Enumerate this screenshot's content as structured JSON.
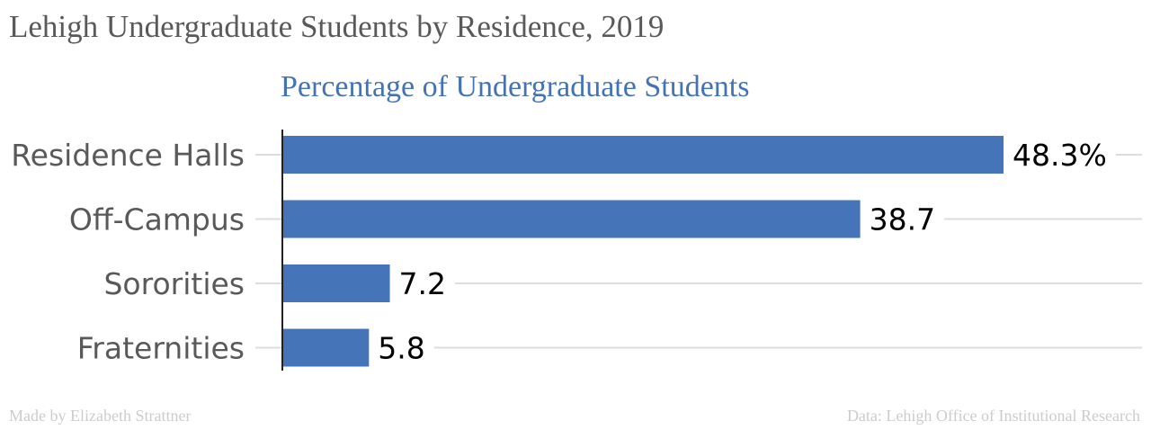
{
  "title": "Lehigh Undergraduate Students by Residence, 2019",
  "footer": {
    "left": "Made by Elizabeth Strattner",
    "right": "Data: Lehigh Office of Institutional Research"
  },
  "colors": {
    "bar": "#4575b8",
    "grid": "#dddddd",
    "axis": "#222222"
  },
  "chart_data": {
    "type": "bar",
    "orientation": "horizontal",
    "title": "Percentage of Undergraduate Students",
    "categories": [
      "Residence Halls",
      "Off-Campus",
      "Sororities",
      "Fraternities"
    ],
    "values": [
      48.3,
      38.7,
      7.2,
      5.8
    ],
    "value_labels": [
      "48.3%",
      "38.7",
      "7.2",
      "5.8"
    ],
    "xlim": [
      0,
      48.3
    ],
    "grid": true,
    "legend": "none"
  }
}
